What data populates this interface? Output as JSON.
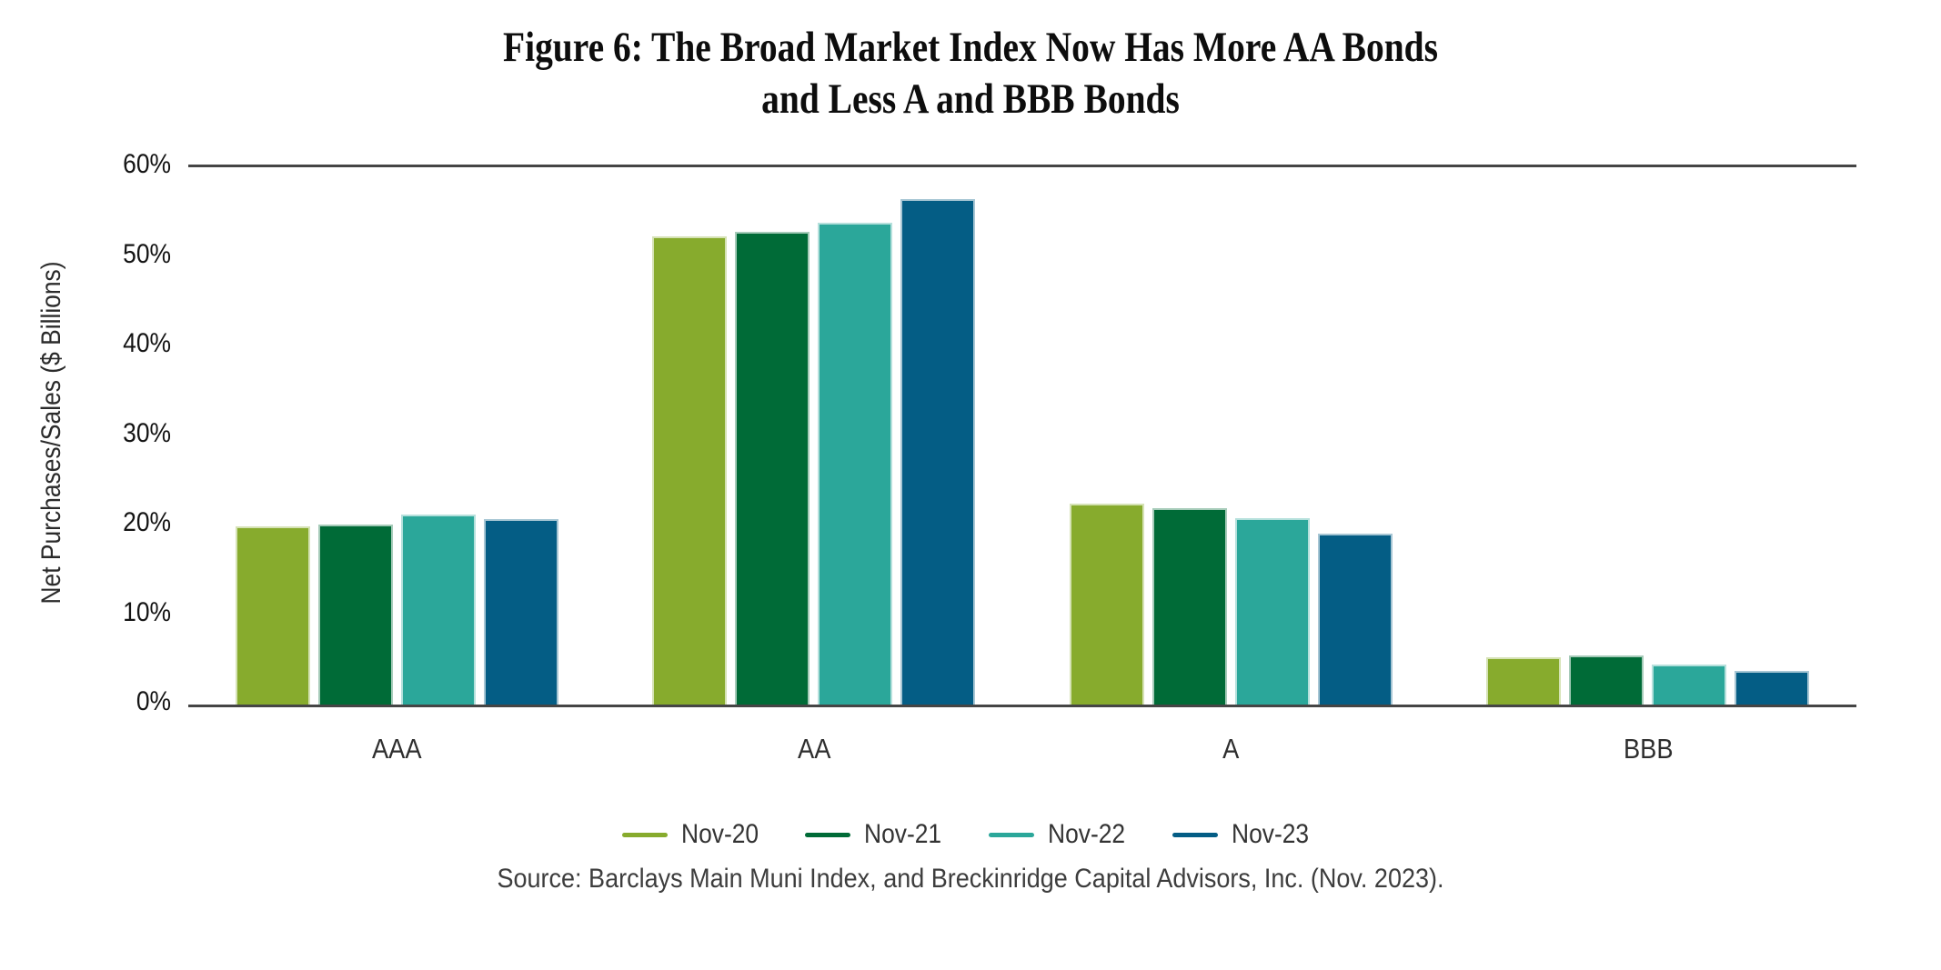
{
  "title": {
    "line1": "Figure 6: The Broad Market Index Now Has More AA Bonds",
    "line2": "and Less A and BBB Bonds"
  },
  "source": "Source: Barclays Main Muni Index, and Breckinridge Capital Advisors, Inc. (Nov. 2023).",
  "chart_data": {
    "type": "bar",
    "title": "Figure 6: The Broad Market Index Now Has More AA Bonds and Less A and BBB Bonds",
    "xlabel": "",
    "ylabel": "Net Purchases/Sales ($ Billions)",
    "categories": [
      "AAA",
      "AA",
      "A",
      "BBB"
    ],
    "series": [
      {
        "name": "Nov-20",
        "color": "#87AB2D",
        "values": [
          19.9,
          52.3,
          22.4,
          5.3
        ]
      },
      {
        "name": "Nov-21",
        "color": "#006B37",
        "values": [
          20.1,
          52.8,
          21.9,
          5.5
        ]
      },
      {
        "name": "Nov-22",
        "color": "#2BA79A",
        "values": [
          21.2,
          53.8,
          20.8,
          4.5
        ]
      },
      {
        "name": "Nov-23",
        "color": "#045D85",
        "values": [
          20.7,
          56.4,
          19.1,
          3.8
        ]
      }
    ],
    "ylim": [
      0,
      60
    ],
    "yticks": [
      "0%",
      "10%",
      "20%",
      "30%",
      "40%",
      "50%",
      "60%"
    ],
    "grid": "horizontal lines at 0% and 60% only",
    "legend_position": "bottom"
  },
  "colors": {
    "axis_line": "#454545",
    "tick_text": "#141414",
    "category_text": "#2e2e2e",
    "legend_text": "#333333",
    "source_text": "#3d3d3d"
  }
}
